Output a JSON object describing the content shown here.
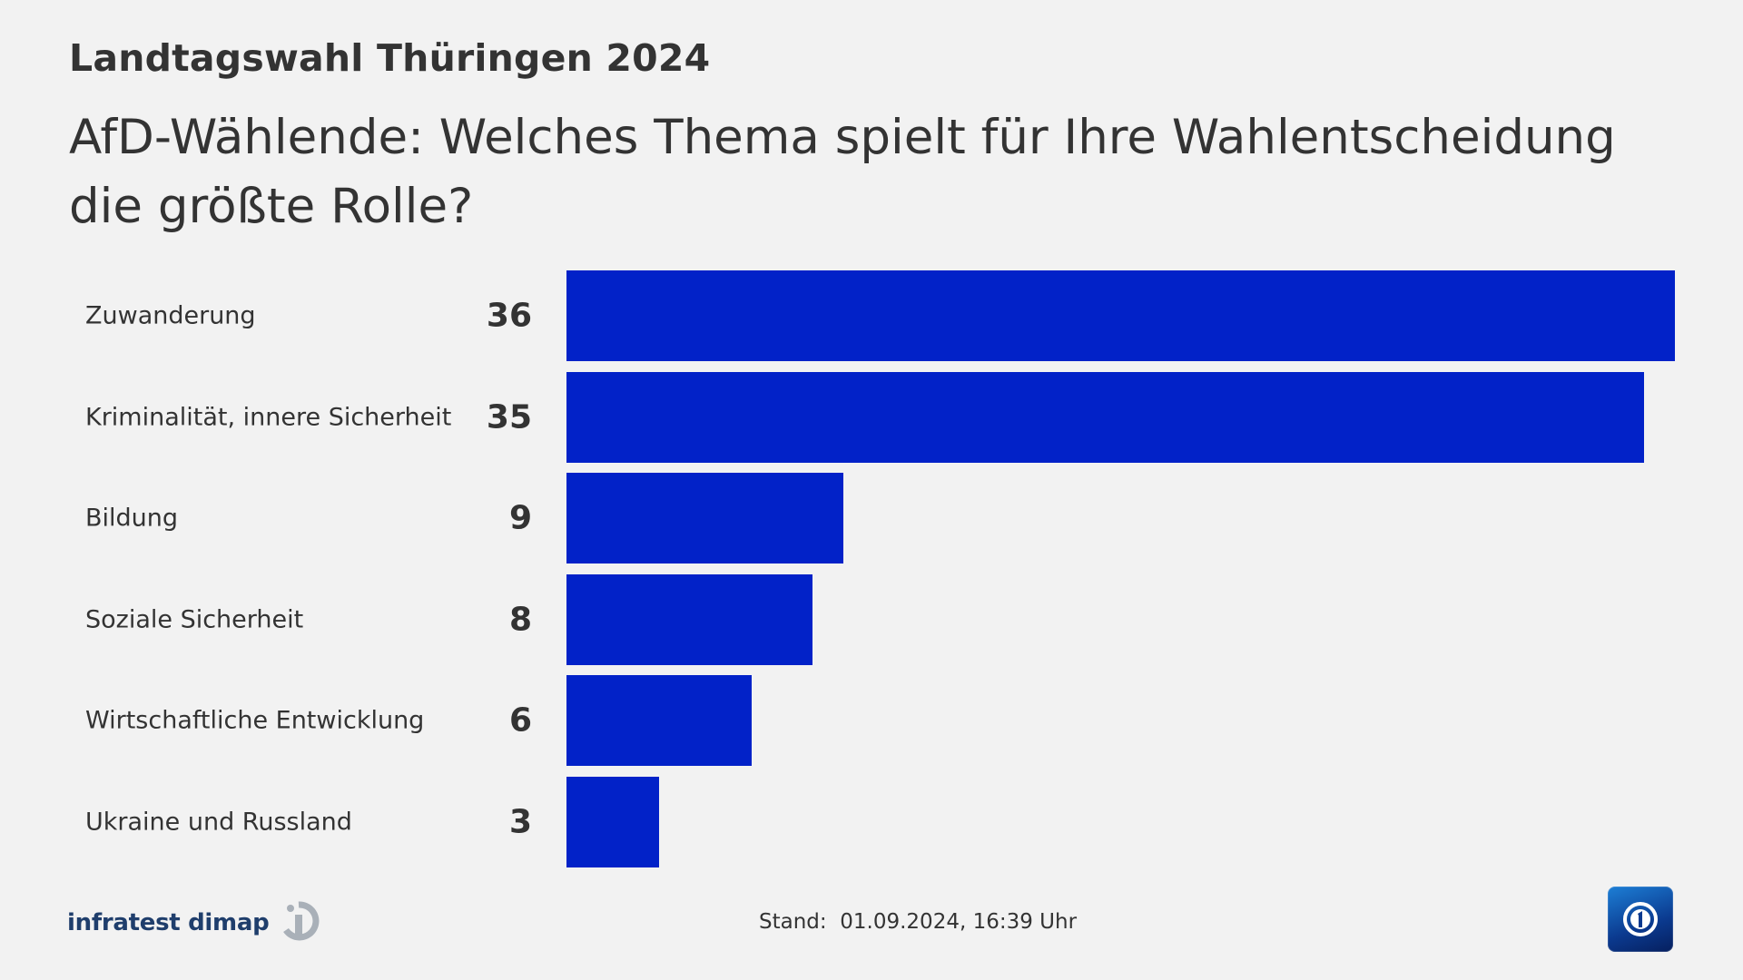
{
  "header": {
    "overline": "Landtagswahl Thüringen 2024",
    "title": "AfD-Wählende: Welches Thema spielt für Ihre Wahlentscheidung die größte Rolle?"
  },
  "chart_data": {
    "type": "bar",
    "orientation": "horizontal",
    "categories": [
      "Zuwanderung",
      "Kriminalität, innere Sicherheit",
      "Bildung",
      "Soziale Sicherheit",
      "Wirtschaftliche Entwicklung",
      "Ukraine und Russland"
    ],
    "values": [
      36,
      35,
      9,
      8,
      6,
      3
    ],
    "xlim": [
      0,
      36
    ],
    "bar_color": "#0222c8",
    "grid": false
  },
  "footer": {
    "source": "infratest dimap",
    "stand_label": "Stand:",
    "stand_value": "01.09.2024, 16:39 Uhr"
  },
  "colors": {
    "background": "#f2f2f2",
    "text": "#333333",
    "bar": "#0222c8",
    "source_text": "#1f3e6c"
  },
  "icons": {
    "source_logo": "infratest-dimap-logo-icon",
    "broadcaster_logo": "tagesschau-logo-icon"
  }
}
